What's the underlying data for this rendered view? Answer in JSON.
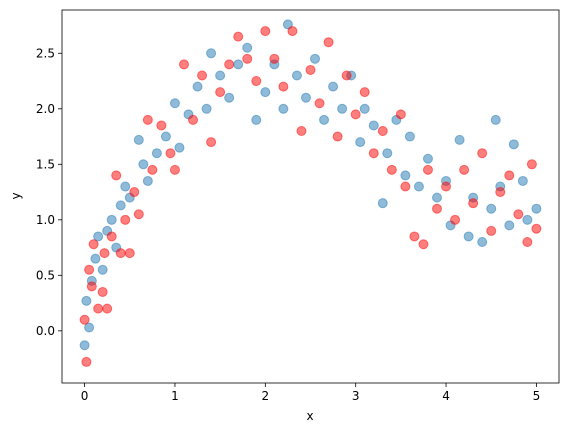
{
  "chart_data": {
    "type": "scatter",
    "xlabel": "x",
    "ylabel": "y",
    "xlim": [
      -0.25,
      5.25
    ],
    "xticks": [
      0,
      1,
      2,
      3,
      4,
      5
    ],
    "ylim": [
      -0.47,
      2.89
    ],
    "yticks": [
      {
        "value": 0,
        "label": "0.0"
      },
      {
        "value": 0.5,
        "label": "0.5"
      },
      {
        "value": 1,
        "label": "1.0"
      },
      {
        "value": 1.5,
        "label": "1.5"
      },
      {
        "value": 2,
        "label": "2.0"
      },
      {
        "value": 2.5,
        "label": "2.5"
      }
    ],
    "series": [
      {
        "color": "#1f77b4",
        "x": [
          0,
          0.02,
          0.05,
          0.08,
          0.12,
          0.15,
          0.2,
          0.25,
          0.3,
          0.35,
          0.4,
          0.45,
          0.5,
          0.6,
          0.65,
          0.7,
          0.8,
          0.9,
          1.0,
          1.05,
          1.15,
          1.25,
          1.35,
          1.4,
          1.5,
          1.6,
          1.7,
          1.8,
          1.9,
          2.0,
          2.1,
          2.2,
          2.25,
          2.35,
          2.45,
          2.55,
          2.65,
          2.75,
          2.85,
          2.95,
          3.05,
          3.1,
          3.2,
          3.3,
          3.35,
          3.45,
          3.55,
          3.6,
          3.7,
          3.8,
          3.9,
          4.0,
          4.05,
          4.15,
          4.25,
          4.3,
          4.4,
          4.5,
          4.55,
          4.6,
          4.7,
          4.75,
          4.85,
          4.9,
          5.0
        ],
        "values": [
          -0.13,
          0.27,
          0.03,
          0.45,
          0.65,
          0.85,
          0.55,
          0.9,
          1.0,
          0.75,
          1.13,
          1.3,
          1.2,
          1.72,
          1.5,
          1.35,
          1.6,
          1.75,
          2.05,
          1.65,
          1.95,
          2.2,
          2.0,
          2.5,
          2.3,
          2.1,
          2.4,
          2.55,
          1.9,
          2.15,
          2.4,
          2.0,
          2.76,
          2.3,
          2.1,
          2.45,
          1.9,
          2.2,
          2.0,
          2.3,
          1.7,
          2.0,
          1.85,
          1.15,
          1.6,
          1.9,
          1.4,
          1.75,
          1.3,
          1.55,
          1.2,
          1.35,
          0.95,
          1.72,
          0.85,
          1.2,
          0.8,
          1.1,
          1.9,
          1.3,
          0.95,
          1.68,
          1.35,
          1.0,
          1.1
        ]
      },
      {
        "color": "#ff0000",
        "x": [
          0,
          0.02,
          0.05,
          0.08,
          0.1,
          0.15,
          0.2,
          0.22,
          0.25,
          0.3,
          0.35,
          0.4,
          0.45,
          0.5,
          0.55,
          0.6,
          0.7,
          0.75,
          0.85,
          0.95,
          1.0,
          1.1,
          1.2,
          1.3,
          1.4,
          1.5,
          1.6,
          1.7,
          1.8,
          1.9,
          2.0,
          2.1,
          2.2,
          2.3,
          2.4,
          2.5,
          2.6,
          2.7,
          2.8,
          2.9,
          3.0,
          3.1,
          3.2,
          3.3,
          3.4,
          3.5,
          3.55,
          3.65,
          3.75,
          3.8,
          3.9,
          4.0,
          4.1,
          4.2,
          4.3,
          4.4,
          4.5,
          4.6,
          4.7,
          4.8,
          4.9,
          4.95,
          5.0
        ],
        "values": [
          0.1,
          -0.28,
          0.55,
          0.4,
          0.78,
          0.2,
          0.35,
          0.7,
          0.2,
          0.85,
          1.4,
          0.7,
          1.0,
          0.7,
          1.25,
          1.05,
          1.9,
          1.45,
          1.85,
          1.6,
          1.45,
          2.4,
          1.9,
          2.3,
          1.7,
          2.15,
          2.4,
          2.65,
          2.45,
          2.25,
          2.7,
          2.45,
          2.2,
          2.7,
          1.8,
          2.35,
          2.05,
          2.6,
          1.75,
          2.3,
          1.95,
          2.15,
          1.6,
          1.8,
          1.45,
          1.95,
          1.3,
          0.85,
          0.78,
          1.45,
          1.1,
          1.3,
          1.0,
          1.45,
          1.15,
          1.6,
          0.9,
          1.25,
          1.4,
          1.05,
          0.8,
          1.5,
          0.92
        ]
      }
    ]
  }
}
